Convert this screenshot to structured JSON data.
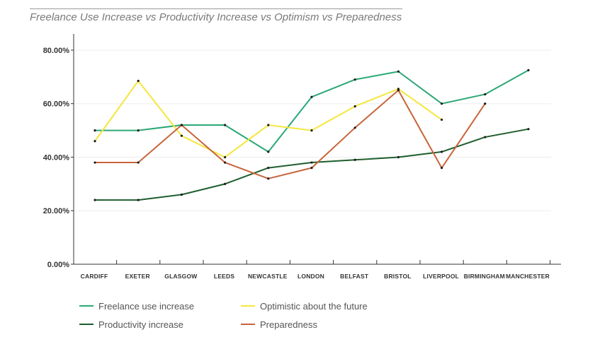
{
  "chart_data": {
    "type": "line",
    "title": "Freelance Use Increase vs Productivity Increase vs Optimism vs Preparedness",
    "xlabel": "",
    "ylabel": "",
    "ylim": [
      0,
      85
    ],
    "yticks": [
      0,
      20,
      40,
      60,
      80
    ],
    "ytick_labels": [
      "0.00%",
      "20.00%",
      "40.00%",
      "60.00%",
      "80.00%"
    ],
    "categories": [
      "CARDIFF",
      "EXETER",
      "GLASGOW",
      "LEEDS",
      "NEWCASTLE",
      "LONDON",
      "BELFAST",
      "BRISTOL",
      "LIVERPOOL",
      "BIRMINGHAM",
      "MANCHESTER"
    ],
    "grid": "horizontal",
    "legend_position": "bottom",
    "series": [
      {
        "name": "Freelance use increase",
        "color": "#2aa876",
        "values": [
          50,
          50,
          52,
          52,
          42,
          62.5,
          69,
          72,
          60,
          63.5,
          72.5
        ]
      },
      {
        "name": "Optimistic about the future",
        "color": "#f5e63c",
        "values": [
          46,
          68.5,
          48,
          40,
          52,
          50,
          59,
          65.5,
          54,
          null,
          null
        ]
      },
      {
        "name": "Productivity increase",
        "color": "#1e5e2e",
        "values": [
          24,
          24,
          26,
          30,
          36,
          38,
          39,
          40,
          42,
          47.5,
          50.5
        ]
      },
      {
        "name": "Preparedness",
        "color": "#c8643a",
        "values": [
          38,
          38,
          52,
          38,
          32,
          36,
          51,
          65,
          36,
          60,
          null
        ]
      }
    ]
  }
}
